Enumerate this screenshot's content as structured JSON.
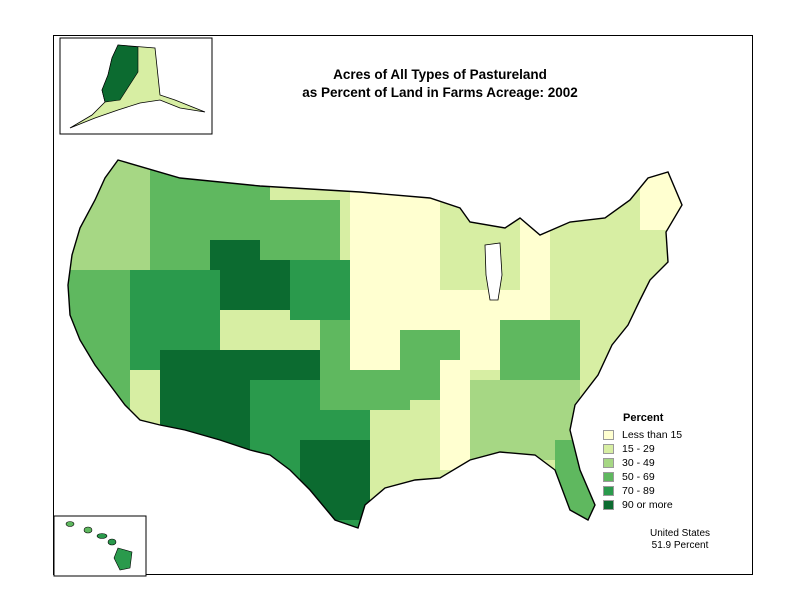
{
  "title": {
    "line1": "Acres of All Types of Pastureland",
    "line2": "as Percent of Land in Farms Acreage:  2002"
  },
  "legend": {
    "title": "Percent",
    "classes": [
      {
        "label": "Less than 15",
        "color": "#ffffd0"
      },
      {
        "label": "15 - 29",
        "color": "#d7eea3"
      },
      {
        "label": "30 - 49",
        "color": "#a6d784"
      },
      {
        "label": "50 - 69",
        "color": "#5fb85f"
      },
      {
        "label": "70 - 89",
        "color": "#2a9a4c"
      },
      {
        "label": "90 or more",
        "color": "#0c6b30"
      }
    ]
  },
  "summary": {
    "line1": "United States",
    "line2": "51.9 Percent"
  }
}
